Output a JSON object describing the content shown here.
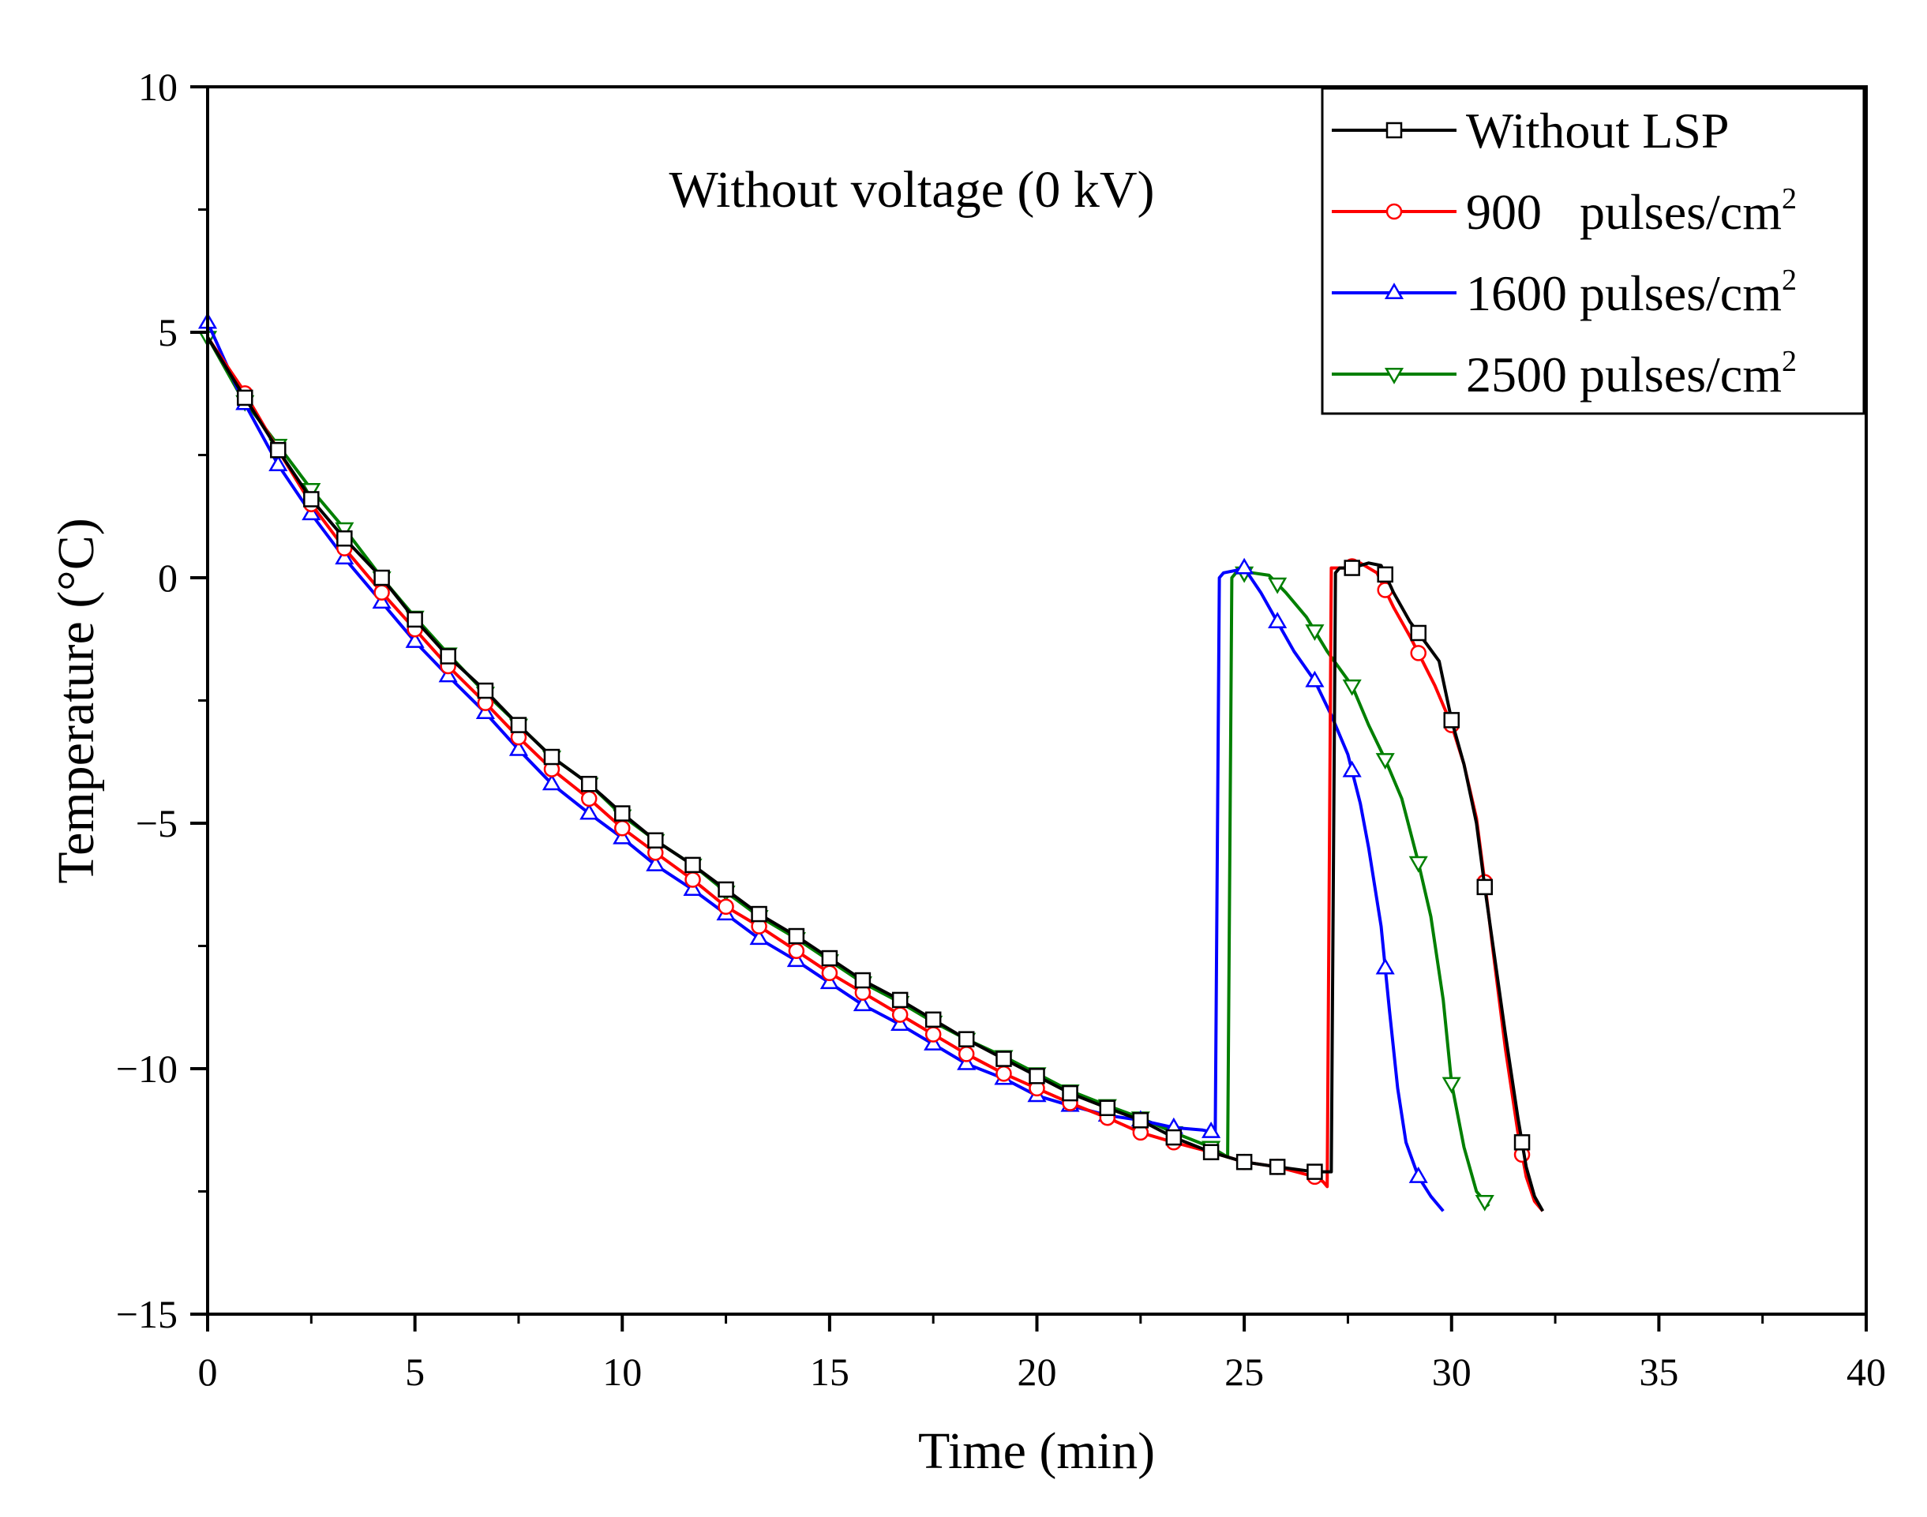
{
  "chart_data": {
    "type": "line",
    "title": "",
    "annotation": "Without voltage (0 kV)",
    "xlabel": "Time (min)",
    "ylabel": "Temperature (°C)",
    "xlim": [
      0,
      40
    ],
    "ylim": [
      -15,
      10
    ],
    "x_ticks": [
      0,
      5,
      10,
      15,
      20,
      25,
      30,
      35,
      40
    ],
    "y_ticks": [
      -15,
      -10,
      -5,
      0,
      5,
      10
    ],
    "x_tick_labels": [
      "0",
      "5",
      "10",
      "15",
      "20",
      "25",
      "30",
      "35",
      "40"
    ],
    "y_tick_labels": [
      "−15",
      "−10",
      "−5",
      "0",
      "5",
      "10"
    ],
    "grid": false,
    "legend_position": "top-right",
    "series": [
      {
        "name": "Without LSP",
        "legend_main": "Without LSP",
        "legend_sup": "",
        "color": "#000000",
        "marker": "square",
        "x": [
          0,
          0.8,
          1.7,
          2.5,
          3.3,
          4.2,
          5.0,
          5.8,
          6.7,
          7.5,
          8.3,
          9.2,
          10.0,
          10.8,
          11.7,
          12.5,
          13.3,
          14.2,
          15.0,
          15.8,
          16.7,
          17.5,
          18.3,
          19.2,
          20.0,
          20.8,
          21.7,
          22.5,
          23.3,
          24.2,
          25.0,
          25.8,
          26.7,
          27.1,
          27.2,
          27.3,
          27.6,
          28.0,
          28.3,
          28.6,
          29.0,
          29.4,
          29.7,
          30.0,
          30.3,
          30.6,
          30.8,
          31.0,
          31.3,
          31.6,
          31.8,
          32.0,
          32.2
        ],
        "y": [
          4.9,
          3.8,
          2.6,
          1.6,
          0.8,
          0.0,
          -0.85,
          -1.6,
          -2.3,
          -3.0,
          -3.65,
          -4.2,
          -4.8,
          -5.35,
          -5.85,
          -6.35,
          -6.85,
          -7.3,
          -7.75,
          -8.2,
          -8.6,
          -9.0,
          -9.4,
          -9.8,
          -10.15,
          -10.5,
          -10.8,
          -11.05,
          -11.4,
          -11.7,
          -11.9,
          -12.0,
          -12.1,
          -12.1,
          0.1,
          0.2,
          0.2,
          0.3,
          0.25,
          -0.3,
          -0.9,
          -1.35,
          -1.7,
          -2.9,
          -3.8,
          -5.0,
          -6.3,
          -7.5,
          -9.3,
          -11.0,
          -12.0,
          -12.6,
          -12.9
        ],
        "marker_x": [
          0.9,
          1.7,
          2.5,
          3.3,
          4.2,
          5.0,
          5.8,
          6.7,
          7.5,
          8.3,
          9.2,
          10.0,
          10.8,
          11.7,
          12.5,
          13.3,
          14.2,
          15.0,
          15.8,
          16.7,
          17.5,
          18.3,
          19.2,
          20.0,
          20.8,
          21.7,
          22.5,
          23.3,
          24.2,
          25.0,
          25.8,
          26.7,
          27.6,
          28.4,
          29.2,
          30.0,
          30.8,
          31.7
        ]
      },
      {
        "name": "900 pulses/cm2",
        "legend_main": "900   pulses/cm",
        "legend_sup": "2",
        "color": "#ff0000",
        "marker": "circle",
        "x": [
          0,
          0.8,
          1.7,
          2.5,
          3.3,
          4.2,
          5.0,
          5.8,
          6.7,
          7.5,
          8.3,
          9.2,
          10.0,
          10.8,
          11.7,
          12.5,
          13.3,
          14.2,
          15.0,
          15.8,
          16.7,
          17.5,
          18.3,
          19.2,
          20.0,
          20.8,
          21.7,
          22.5,
          23.3,
          24.2,
          25.0,
          25.8,
          26.7,
          26.9,
          27.0,
          27.1,
          27.5,
          27.8,
          28.2,
          28.6,
          29.0,
          29.3,
          29.6,
          30.0,
          30.3,
          30.6,
          30.8,
          31.0,
          31.3,
          31.6,
          31.8,
          32.0,
          32.2
        ],
        "y": [
          4.9,
          3.9,
          2.6,
          1.5,
          0.6,
          -0.3,
          -1.05,
          -1.8,
          -2.55,
          -3.25,
          -3.9,
          -4.5,
          -5.1,
          -5.6,
          -6.15,
          -6.7,
          -7.1,
          -7.6,
          -8.05,
          -8.45,
          -8.9,
          -9.3,
          -9.7,
          -10.1,
          -10.4,
          -10.7,
          -11.0,
          -11.3,
          -11.5,
          -11.7,
          -11.9,
          -12.0,
          -12.2,
          -12.3,
          -12.4,
          0.2,
          0.2,
          0.3,
          0.1,
          -0.6,
          -1.2,
          -1.7,
          -2.2,
          -3.0,
          -3.8,
          -4.9,
          -6.2,
          -7.6,
          -9.6,
          -11.3,
          -12.2,
          -12.7,
          -12.9
        ],
        "marker_x": [
          0.9,
          1.7,
          2.5,
          3.3,
          4.2,
          5.0,
          5.8,
          6.7,
          7.5,
          8.3,
          9.2,
          10.0,
          10.8,
          11.7,
          12.5,
          13.3,
          14.2,
          15.0,
          15.8,
          16.7,
          17.5,
          18.3,
          19.2,
          20.0,
          20.8,
          21.7,
          22.5,
          23.3,
          24.2,
          25.0,
          25.8,
          26.7,
          27.6,
          28.4,
          29.2,
          30.0,
          30.8,
          31.7
        ]
      },
      {
        "name": "1600 pulses/cm2",
        "legend_main": "1600 pulses/cm",
        "legend_sup": "2",
        "color": "#0000ff",
        "marker": "triangle-up",
        "x": [
          0,
          0.8,
          1.7,
          2.5,
          3.3,
          4.2,
          5.0,
          5.8,
          6.7,
          7.5,
          8.3,
          9.2,
          10.0,
          10.8,
          11.7,
          12.5,
          13.3,
          14.2,
          15.0,
          15.8,
          16.7,
          17.5,
          18.3,
          19.2,
          20.0,
          20.8,
          21.7,
          22.5,
          23.3,
          24.0,
          24.3,
          24.4,
          24.5,
          24.8,
          25.0,
          25.4,
          25.8,
          26.2,
          26.7,
          27.1,
          27.5,
          27.8,
          28.0,
          28.3,
          28.5,
          28.7,
          28.9,
          29.2,
          29.5,
          29.8
        ],
        "y": [
          5.2,
          3.7,
          2.3,
          1.3,
          0.4,
          -0.5,
          -1.3,
          -2.0,
          -2.75,
          -3.5,
          -4.2,
          -4.8,
          -5.3,
          -5.85,
          -6.35,
          -6.85,
          -7.35,
          -7.8,
          -8.25,
          -8.7,
          -9.1,
          -9.5,
          -9.9,
          -10.2,
          -10.55,
          -10.75,
          -10.95,
          -11.05,
          -11.2,
          -11.25,
          -11.3,
          0.0,
          0.1,
          0.15,
          0.2,
          -0.3,
          -0.9,
          -1.5,
          -2.1,
          -2.8,
          -3.6,
          -4.6,
          -5.5,
          -7.1,
          -8.8,
          -10.4,
          -11.5,
          -12.2,
          -12.6,
          -12.9
        ],
        "marker_x": [
          0.0,
          0.9,
          1.7,
          2.5,
          3.3,
          4.2,
          5.0,
          5.8,
          6.7,
          7.5,
          8.3,
          9.2,
          10.0,
          10.8,
          11.7,
          12.5,
          13.3,
          14.2,
          15.0,
          15.8,
          16.7,
          17.5,
          18.3,
          19.2,
          20.0,
          20.8,
          21.7,
          22.5,
          23.3,
          24.2,
          25.0,
          25.8,
          26.7,
          27.6,
          28.4,
          29.2
        ]
      },
      {
        "name": "2500 pulses/cm2",
        "legend_main": "2500 pulses/cm",
        "legend_sup": "2",
        "color": "#007f00",
        "marker": "triangle-down",
        "x": [
          0,
          0.8,
          1.7,
          2.5,
          3.3,
          4.2,
          5.0,
          5.8,
          6.7,
          7.5,
          8.3,
          9.2,
          10.0,
          10.8,
          11.7,
          12.5,
          13.3,
          14.2,
          15.0,
          15.8,
          16.7,
          17.5,
          18.3,
          19.2,
          20.0,
          20.8,
          21.7,
          22.5,
          23.3,
          24.2,
          24.6,
          24.7,
          24.8,
          25.2,
          25.6,
          26.0,
          26.5,
          27.0,
          27.6,
          28.0,
          28.4,
          28.8,
          29.2,
          29.5,
          29.8,
          30.0,
          30.3,
          30.6,
          30.9
        ],
        "y": [
          4.9,
          3.7,
          2.7,
          1.8,
          1.0,
          0.0,
          -0.8,
          -1.55,
          -2.35,
          -3.0,
          -3.65,
          -4.2,
          -4.85,
          -5.35,
          -5.85,
          -6.4,
          -6.9,
          -7.35,
          -7.8,
          -8.25,
          -8.65,
          -9.05,
          -9.4,
          -9.75,
          -10.1,
          -10.45,
          -10.75,
          -11.0,
          -11.3,
          -11.6,
          -11.8,
          0.0,
          0.1,
          0.1,
          0.05,
          -0.3,
          -0.8,
          -1.5,
          -2.2,
          -3.0,
          -3.7,
          -4.5,
          -5.8,
          -6.9,
          -8.6,
          -10.3,
          -11.6,
          -12.5,
          -12.8
        ],
        "marker_x": [
          0.0,
          0.9,
          1.7,
          2.5,
          3.3,
          4.2,
          5.0,
          5.8,
          6.7,
          7.5,
          8.3,
          9.2,
          10.0,
          10.8,
          11.7,
          12.5,
          13.3,
          14.2,
          15.0,
          15.8,
          16.7,
          17.5,
          18.3,
          19.2,
          20.0,
          20.8,
          21.7,
          22.5,
          23.3,
          24.2,
          25.0,
          25.8,
          26.7,
          27.6,
          28.4,
          29.2,
          30.0,
          30.8
        ]
      }
    ]
  }
}
